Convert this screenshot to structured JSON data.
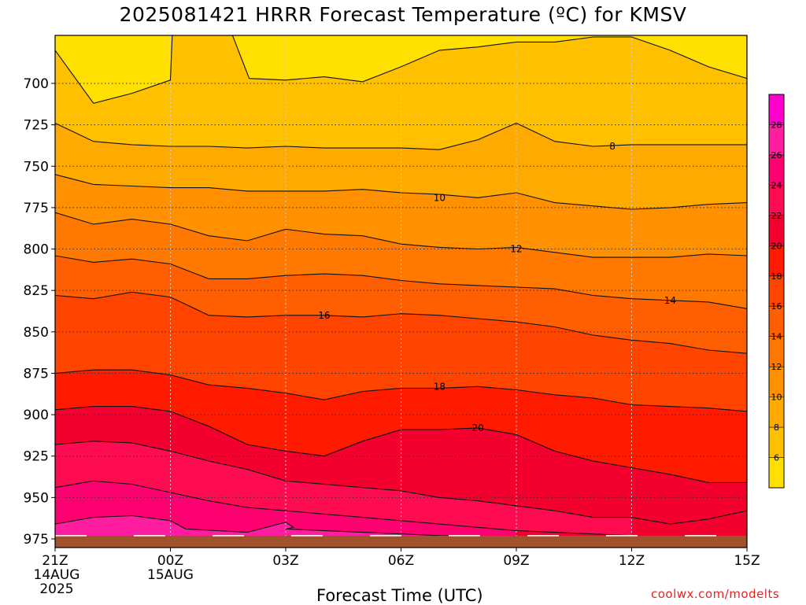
{
  "title": "2025081421 HRRR Forecast Temperature (ºC) for KMSV",
  "credit": "coolwx.com/modelts",
  "chart_data": {
    "type": "heatmap",
    "title": "2025081421 HRRR Forecast Temperature (ºC) for KMSV",
    "xlabel": "Forecast Time (UTC)",
    "ylabel": "",
    "x_ticks": [
      {
        "hour": 0,
        "lines": [
          "21Z",
          "14AUG",
          "2025"
        ]
      },
      {
        "hour": 3,
        "lines": [
          "00Z",
          "15AUG"
        ]
      },
      {
        "hour": 6,
        "lines": [
          "03Z"
        ]
      },
      {
        "hour": 9,
        "lines": [
          "06Z"
        ]
      },
      {
        "hour": 12,
        "lines": [
          "09Z"
        ]
      },
      {
        "hour": 15,
        "lines": [
          "12Z"
        ]
      },
      {
        "hour": 18,
        "lines": [
          "15Z"
        ]
      }
    ],
    "xlim": [
      0,
      18
    ],
    "y_ticks": [
      700,
      725,
      750,
      775,
      800,
      825,
      850,
      875,
      900,
      925,
      950,
      975
    ],
    "ylim": [
      675,
      980
    ],
    "y_inverted": true,
    "colorbar": {
      "levels": [
        4,
        6,
        8,
        10,
        12,
        14,
        16,
        18,
        20,
        22,
        24,
        26,
        28,
        30
      ],
      "labels": [
        6,
        8,
        10,
        12,
        14,
        16,
        18,
        20,
        22,
        24,
        26,
        28
      ],
      "colors": [
        "#ffe000",
        "#ffc000",
        "#ffaa00",
        "#ff9000",
        "#ff7800",
        "#ff5f00",
        "#ff4400",
        "#ff1a00",
        "#f4002e",
        "#ff0b52",
        "#ff0070",
        "#ff1ea0",
        "#ff00cc"
      ]
    },
    "ground_pressure_hpa": 974,
    "ground_color": "#a0522d",
    "contour_lines": [
      {
        "label": "8",
        "points": [
          [
            0,
            724
          ],
          [
            1,
            735
          ],
          [
            2,
            737
          ],
          [
            3,
            738
          ],
          [
            4,
            738
          ],
          [
            5,
            739
          ],
          [
            6,
            738
          ],
          [
            7,
            739
          ],
          [
            8,
            739
          ],
          [
            9,
            739
          ],
          [
            10,
            740
          ],
          [
            11,
            734
          ],
          [
            12,
            724
          ],
          [
            13,
            735
          ],
          [
            14,
            738
          ],
          [
            15,
            737
          ],
          [
            16,
            737
          ],
          [
            17,
            737
          ],
          [
            18,
            737
          ]
        ],
        "label_at": [
          14.5,
          738
        ]
      },
      {
        "label": "10",
        "points": [
          [
            0,
            755
          ],
          [
            1,
            761
          ],
          [
            2,
            762
          ],
          [
            3,
            763
          ],
          [
            4,
            763
          ],
          [
            5,
            765
          ],
          [
            6,
            765
          ],
          [
            7,
            765
          ],
          [
            8,
            764
          ],
          [
            9,
            766
          ],
          [
            10,
            767
          ],
          [
            11,
            769
          ],
          [
            12,
            766
          ],
          [
            13,
            772
          ],
          [
            14,
            774
          ],
          [
            15,
            776
          ],
          [
            16,
            775
          ],
          [
            17,
            773
          ],
          [
            18,
            772
          ]
        ],
        "label_at": [
          10,
          769
        ]
      },
      {
        "label": "12",
        "points": [
          [
            0,
            778
          ],
          [
            1,
            785
          ],
          [
            2,
            782
          ],
          [
            3,
            785
          ],
          [
            4,
            792
          ],
          [
            5,
            795
          ],
          [
            6,
            788
          ],
          [
            7,
            791
          ],
          [
            8,
            792
          ],
          [
            9,
            797
          ],
          [
            10,
            799
          ],
          [
            11,
            800
          ],
          [
            12,
            799
          ],
          [
            13,
            802
          ],
          [
            14,
            805
          ],
          [
            15,
            805
          ],
          [
            16,
            805
          ],
          [
            17,
            803
          ],
          [
            18,
            804
          ]
        ],
        "label_at": [
          12,
          800
        ]
      },
      {
        "label": "14",
        "points": [
          [
            0,
            804
          ],
          [
            1,
            808
          ],
          [
            2,
            806
          ],
          [
            3,
            809
          ],
          [
            4,
            818
          ],
          [
            5,
            818
          ],
          [
            6,
            816
          ],
          [
            7,
            815
          ],
          [
            8,
            816
          ],
          [
            9,
            819
          ],
          [
            10,
            821
          ],
          [
            11,
            822
          ],
          [
            12,
            823
          ],
          [
            13,
            824
          ],
          [
            14,
            828
          ],
          [
            15,
            830
          ],
          [
            16,
            831
          ],
          [
            17,
            832
          ],
          [
            18,
            836
          ]
        ],
        "label_at": [
          16,
          831
        ]
      },
      {
        "label": "16",
        "points": [
          [
            0,
            828
          ],
          [
            1,
            830
          ],
          [
            2,
            826
          ],
          [
            3,
            829
          ],
          [
            4,
            840
          ],
          [
            5,
            841
          ],
          [
            6,
            840
          ],
          [
            7,
            840
          ],
          [
            8,
            841
          ],
          [
            9,
            839
          ],
          [
            10,
            840
          ],
          [
            11,
            842
          ],
          [
            12,
            844
          ],
          [
            13,
            847
          ],
          [
            14,
            852
          ],
          [
            15,
            855
          ],
          [
            16,
            857
          ],
          [
            17,
            861
          ],
          [
            18,
            863
          ]
        ],
        "label_at": [
          7,
          840
        ]
      },
      {
        "label": "18",
        "points": [
          [
            0,
            875
          ],
          [
            1,
            873
          ],
          [
            2,
            873
          ],
          [
            3,
            876
          ],
          [
            4,
            882
          ],
          [
            5,
            884
          ],
          [
            6,
            887
          ],
          [
            7,
            891
          ],
          [
            8,
            886
          ],
          [
            9,
            884
          ],
          [
            10,
            884
          ],
          [
            11,
            883
          ],
          [
            12,
            885
          ],
          [
            13,
            888
          ],
          [
            14,
            890
          ],
          [
            15,
            894
          ],
          [
            16,
            895
          ],
          [
            17,
            896
          ],
          [
            18,
            898
          ]
        ],
        "label_at": [
          10,
          883
        ]
      },
      {
        "label": "20",
        "points": [
          [
            0,
            897
          ],
          [
            1,
            895
          ],
          [
            2,
            895
          ],
          [
            3,
            898
          ],
          [
            4,
            907
          ],
          [
            5,
            918
          ],
          [
            6,
            922
          ],
          [
            7,
            925
          ],
          [
            8,
            916
          ],
          [
            9,
            909
          ],
          [
            10,
            909
          ],
          [
            11,
            908
          ],
          [
            12,
            912
          ],
          [
            13,
            922
          ],
          [
            14,
            928
          ],
          [
            15,
            932
          ],
          [
            16,
            936
          ],
          [
            17,
            941
          ],
          [
            18,
            941
          ]
        ],
        "label_at": [
          11,
          908
        ]
      },
      {
        "label": "22",
        "points": [
          [
            0,
            918
          ],
          [
            1,
            916
          ],
          [
            2,
            917
          ],
          [
            3,
            922
          ],
          [
            4,
            928
          ],
          [
            5,
            933
          ],
          [
            6,
            940
          ],
          [
            7,
            942
          ],
          [
            8,
            944
          ],
          [
            9,
            946
          ],
          [
            10,
            950
          ],
          [
            11,
            952
          ],
          [
            12,
            955
          ],
          [
            13,
            958
          ],
          [
            14,
            962
          ],
          [
            15,
            962
          ],
          [
            16,
            966
          ],
          [
            17,
            963
          ],
          [
            18,
            958
          ]
        ]
      },
      {
        "label": "24",
        "points": [
          [
            0,
            944
          ],
          [
            1,
            940
          ],
          [
            2,
            942
          ],
          [
            3,
            947
          ],
          [
            4,
            952
          ],
          [
            5,
            956
          ],
          [
            6,
            958
          ],
          [
            7,
            960
          ],
          [
            8,
            962
          ],
          [
            9,
            964
          ],
          [
            10,
            966
          ],
          [
            11,
            968
          ],
          [
            12,
            970
          ],
          [
            13,
            971
          ],
          [
            14,
            972
          ],
          [
            15,
            973
          ]
        ]
      },
      {
        "label": "26",
        "points": [
          [
            0,
            966
          ],
          [
            1,
            962
          ],
          [
            2,
            961
          ],
          [
            3,
            964
          ],
          [
            3.4,
            969
          ],
          [
            5,
            971
          ],
          [
            6,
            965
          ],
          [
            6.2,
            968
          ],
          [
            6,
            969
          ],
          [
            8,
            971
          ],
          [
            10,
            973
          ],
          [
            12,
            974
          ]
        ]
      }
    ],
    "cold_pockets": [
      {
        "label": "6",
        "points": [
          [
            0,
            680
          ],
          [
            1,
            712
          ],
          [
            2,
            706
          ],
          [
            3,
            698
          ],
          [
            3.05,
            670
          ],
          [
            0,
            670
          ]
        ]
      },
      {
        "label": "6",
        "points": [
          [
            4.6,
            670
          ],
          [
            5.05,
            697
          ],
          [
            6,
            698
          ],
          [
            7,
            696
          ],
          [
            8,
            699
          ],
          [
            9,
            690
          ],
          [
            10,
            680
          ],
          [
            11,
            678
          ],
          [
            12,
            675
          ],
          [
            13,
            675
          ],
          [
            14,
            672
          ],
          [
            15,
            672
          ],
          [
            16,
            680
          ],
          [
            17,
            690
          ],
          [
            18,
            697
          ],
          [
            18,
            670
          ]
        ]
      }
    ]
  },
  "axes": {
    "x_tick_labels": [
      "21Z",
      "00Z",
      "03Z",
      "06Z",
      "09Z",
      "12Z",
      "15Z"
    ],
    "x_date_labels": [
      "14AUG",
      "15AUG"
    ],
    "x_year_label": "2025",
    "y_tick_labels": [
      "700",
      "725",
      "750",
      "775",
      "800",
      "825",
      "850",
      "875",
      "900",
      "925",
      "950",
      "975"
    ]
  }
}
